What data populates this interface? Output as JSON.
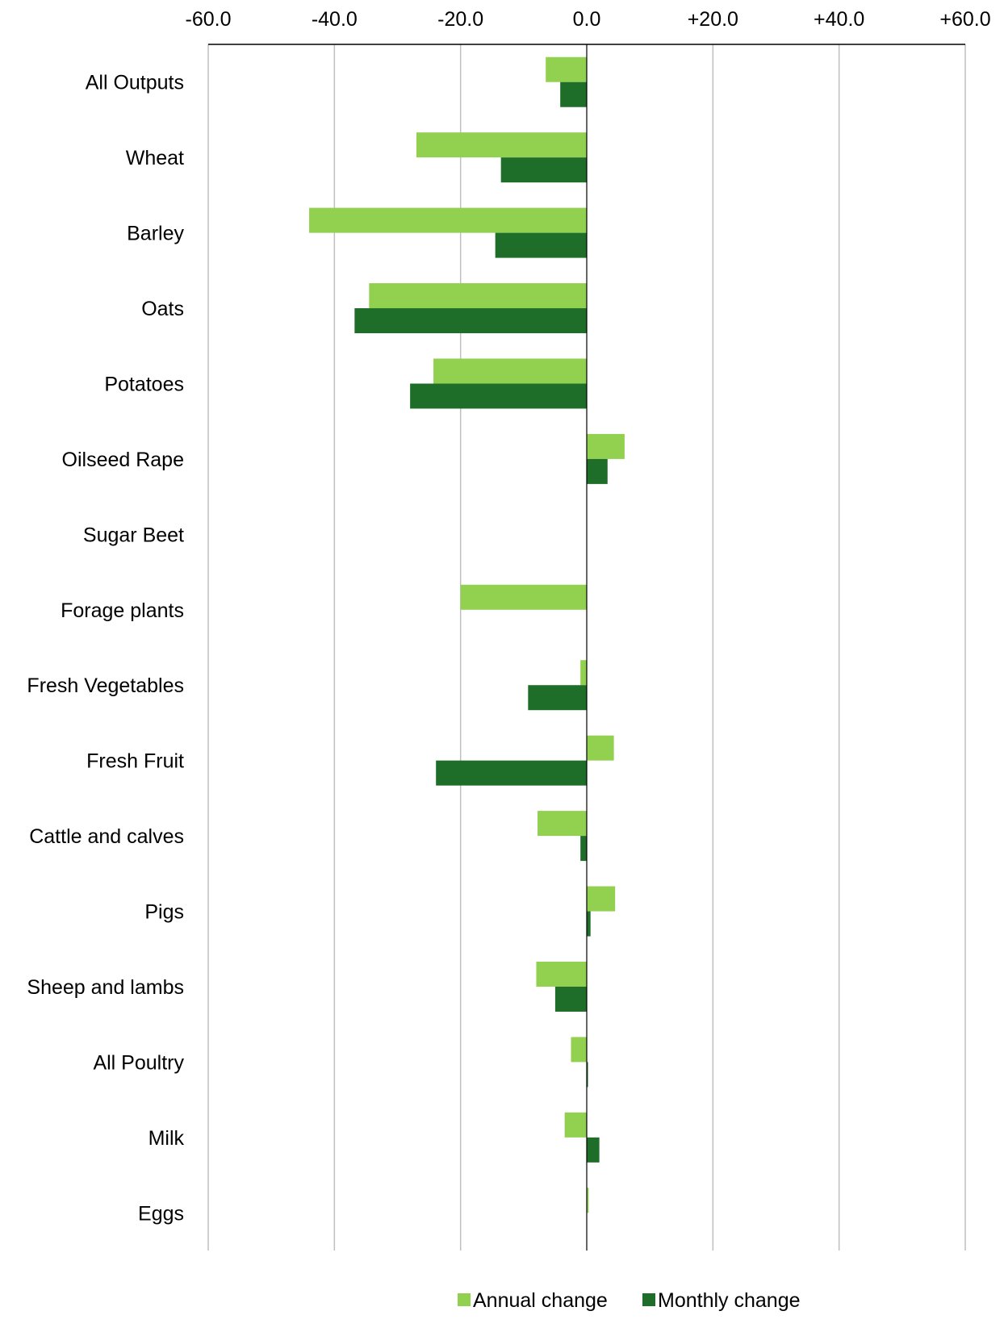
{
  "chart_data": {
    "type": "bar",
    "orientation": "horizontal",
    "title": "",
    "xlabel": "",
    "ylabel": "",
    "xlim": [
      -60,
      60
    ],
    "x_ticks": [
      -60,
      -40,
      -20,
      0,
      20,
      40,
      60
    ],
    "x_tick_labels": [
      "-60.0",
      "-40.0",
      "-20.0",
      "0.0",
      "+20.0",
      "+40.0",
      "+60.0"
    ],
    "x_axis_position": "top",
    "grid": true,
    "legend_position": "bottom-center",
    "categories": [
      "All Outputs",
      "Wheat",
      "Barley",
      "Oats",
      "Potatoes",
      "Oilseed Rape",
      "Sugar Beet",
      "Forage plants",
      "Fresh Vegetables",
      "Fresh Fruit",
      "Cattle and calves",
      "Pigs",
      "Sheep and lambs",
      "All Poultry",
      "Milk",
      "Eggs"
    ],
    "series": [
      {
        "name": "Annual change",
        "color": "#92d050",
        "values": [
          -6.5,
          -27.0,
          -44.0,
          -34.5,
          -24.3,
          6.0,
          0,
          -20.0,
          -1.0,
          4.3,
          -7.8,
          4.5,
          -8.0,
          -2.5,
          -3.5,
          0.3
        ]
      },
      {
        "name": "Monthly change",
        "color": "#1e6e2a",
        "values": [
          -4.2,
          -13.6,
          -14.5,
          -36.8,
          -28.0,
          3.3,
          0,
          0,
          -9.3,
          -23.9,
          -1.0,
          0.6,
          -5.0,
          0.2,
          2.0,
          0
        ]
      }
    ]
  }
}
